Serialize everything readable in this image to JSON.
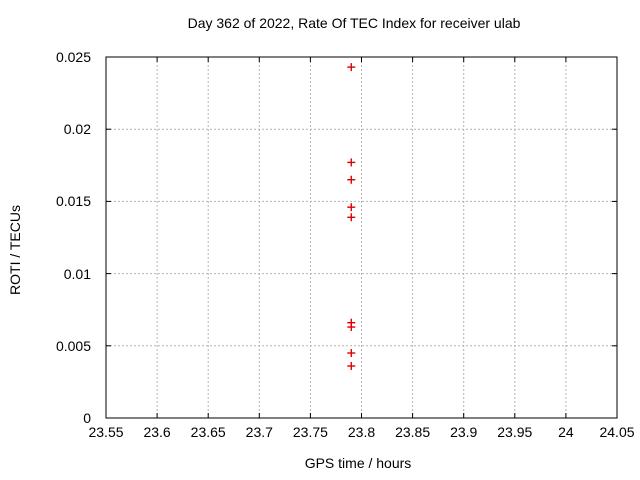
{
  "chart_data": {
    "type": "scatter",
    "title": "Day 362 of 2022, Rate Of TEC Index for receiver ulab",
    "xlabel": "GPS time / hours",
    "ylabel": "ROTI / TECUs",
    "xlim": [
      23.55,
      24.05
    ],
    "ylim": [
      0,
      0.025
    ],
    "xticks": [
      23.55,
      23.6,
      23.65,
      23.7,
      23.75,
      23.8,
      23.85,
      23.9,
      23.95,
      24,
      24.05
    ],
    "xtick_labels": [
      "23.55",
      "23.6",
      "23.65",
      "23.7",
      "23.75",
      "23.8",
      "23.85",
      "23.9",
      "23.95",
      "24",
      "24.05"
    ],
    "yticks": [
      0,
      0.005,
      0.01,
      0.015,
      0.02,
      0.025
    ],
    "ytick_labels": [
      "0",
      "0.005",
      "0.01",
      "0.015",
      "0.02",
      "0.025"
    ],
    "grid": true,
    "legend_position": "none",
    "series": [
      {
        "name": "ROTI",
        "marker": "plus",
        "color": "#e00000",
        "points": [
          {
            "x": 23.79,
            "y": 0.0243
          },
          {
            "x": 23.79,
            "y": 0.0177
          },
          {
            "x": 23.79,
            "y": 0.0165
          },
          {
            "x": 23.79,
            "y": 0.0146
          },
          {
            "x": 23.79,
            "y": 0.0139
          },
          {
            "x": 23.79,
            "y": 0.0066
          },
          {
            "x": 23.79,
            "y": 0.0063
          },
          {
            "x": 23.79,
            "y": 0.0045
          },
          {
            "x": 23.79,
            "y": 0.0036
          }
        ]
      }
    ],
    "colors": {
      "background": "#ffffff",
      "frame": "#000000",
      "grid": "#b4b4b4",
      "text": "#000000"
    }
  }
}
